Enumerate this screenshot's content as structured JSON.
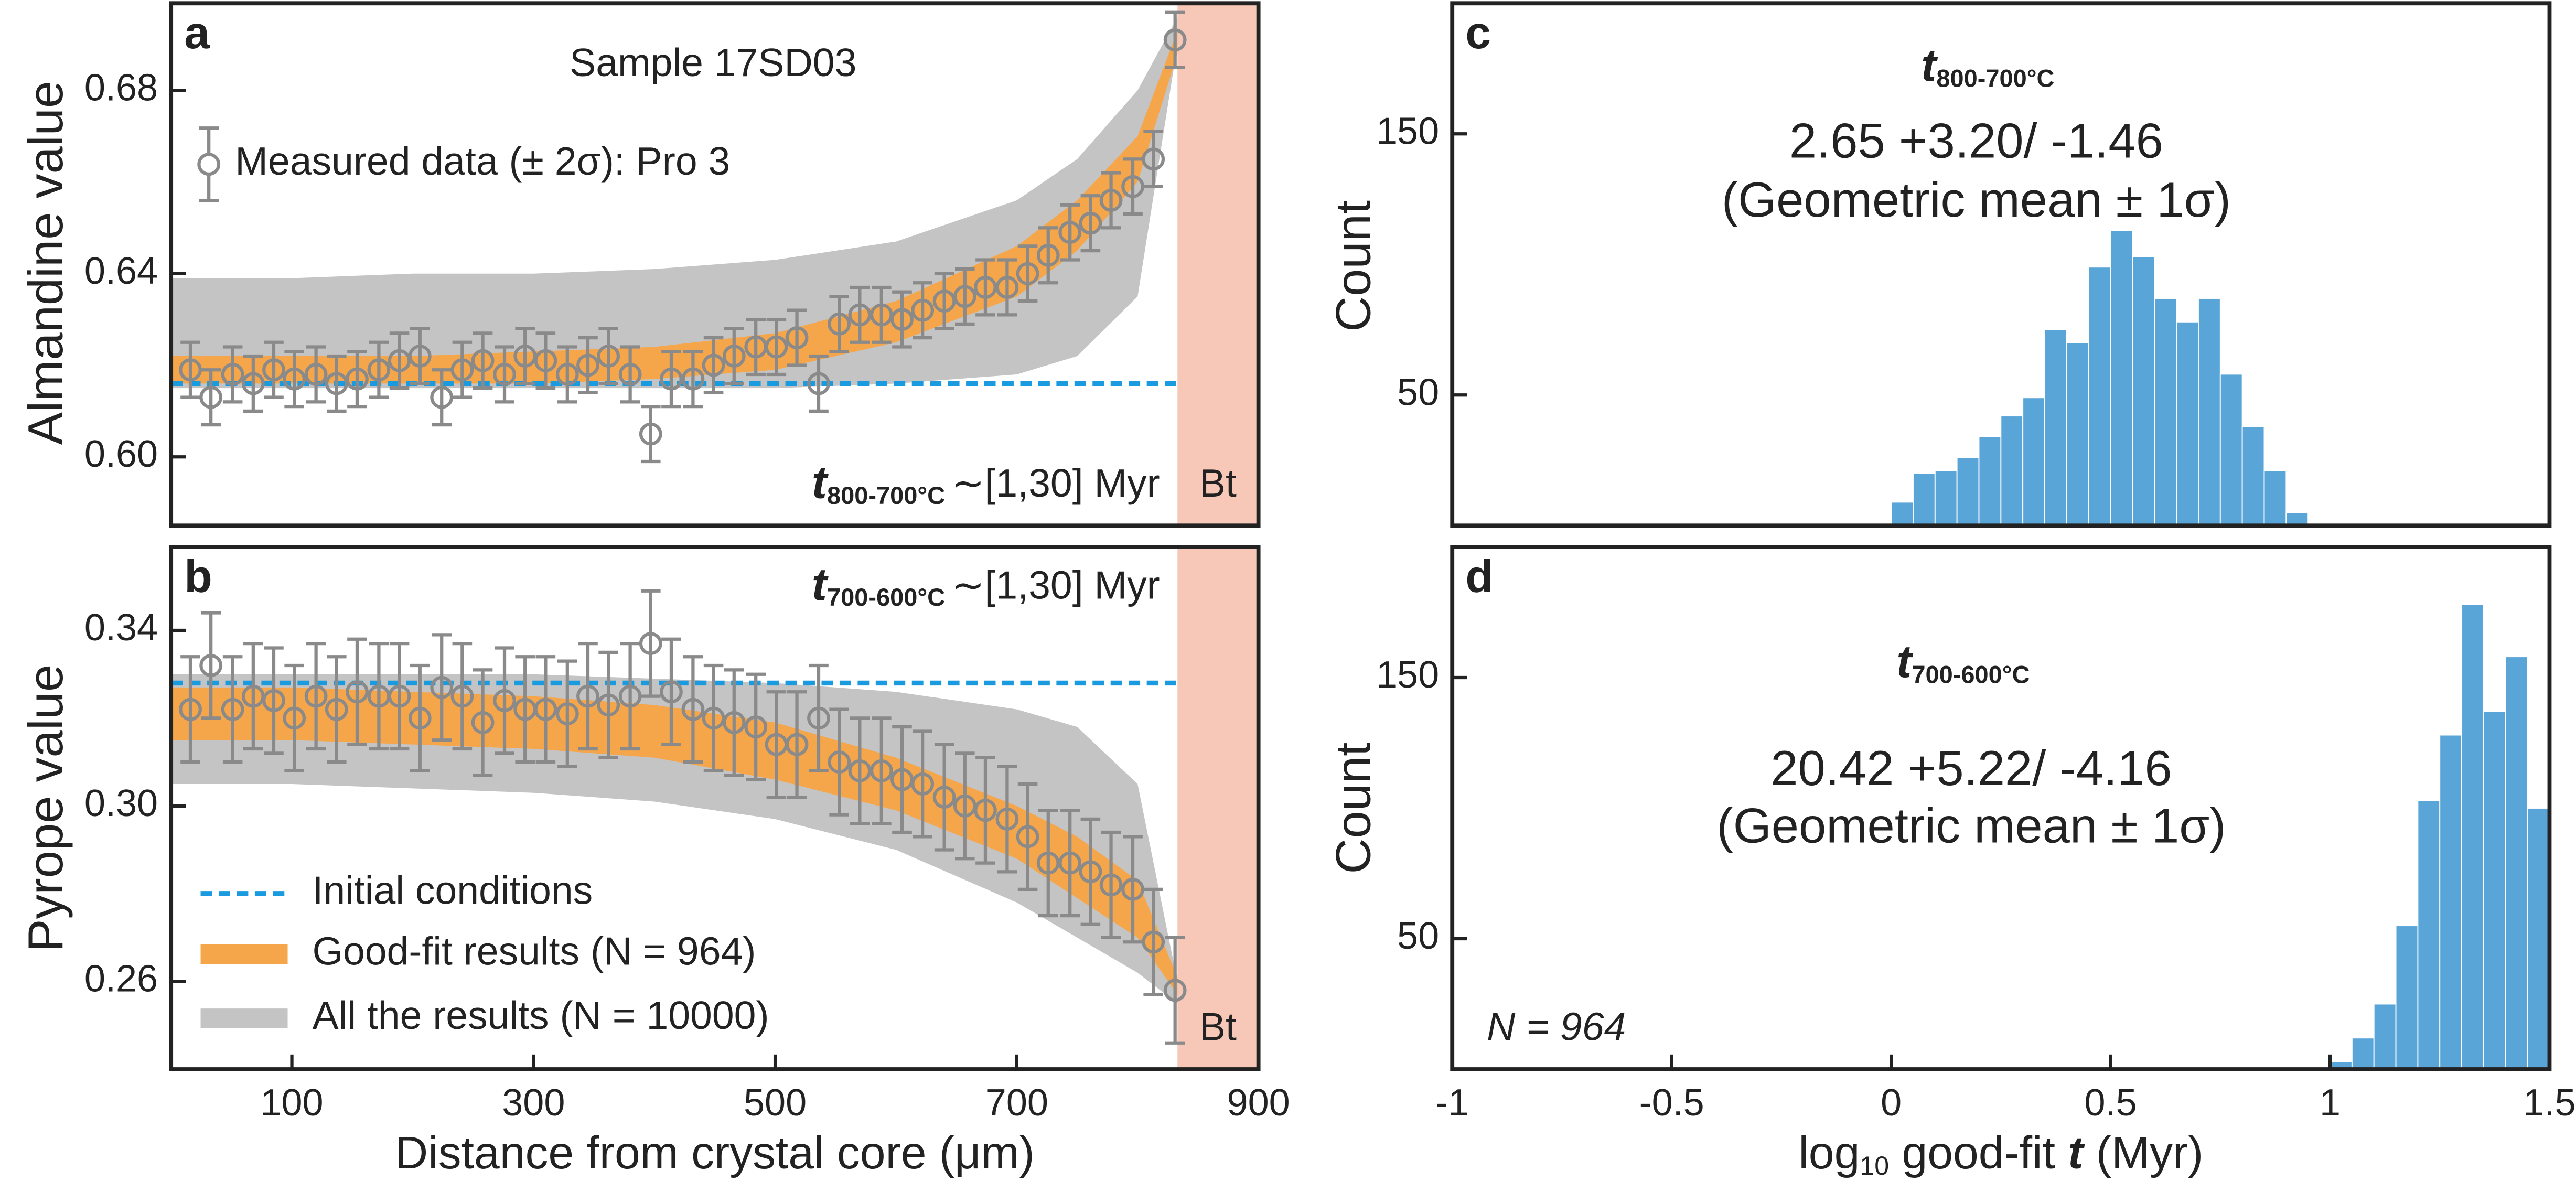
{
  "chart_data": [
    {
      "type": "scatter",
      "label": "a",
      "title": "Sample 17SD03",
      "y_label": "Almandine value",
      "xlim": [
        0,
        900
      ],
      "ylim": [
        0.585,
        0.699
      ],
      "yticks": [
        {
          "value": 0.6,
          "label": "0.60"
        },
        0.64,
        0.68
      ],
      "x": [
        16,
        33,
        51,
        68,
        85,
        102,
        120,
        137,
        154,
        172,
        189,
        206,
        224,
        241,
        258,
        276,
        293,
        310,
        328,
        345,
        362,
        380,
        397,
        414,
        432,
        449,
        466,
        484,
        501,
        518,
        536,
        553,
        570,
        588,
        605,
        622,
        640,
        657,
        674,
        692,
        709,
        726,
        744,
        761,
        778,
        796,
        813,
        831
      ],
      "measured": {
        "name": "Measured data (± 2σ): Pro 3",
        "color": "#8a8a8a",
        "error": 0.006,
        "values": [
          0.619,
          0.613,
          0.618,
          0.616,
          0.619,
          0.617,
          0.618,
          0.616,
          0.617,
          0.619,
          0.621,
          0.622,
          0.613,
          0.619,
          0.621,
          0.618,
          0.622,
          0.621,
          0.618,
          0.62,
          0.622,
          0.618,
          0.605,
          0.617,
          0.617,
          0.62,
          0.622,
          0.624,
          0.624,
          0.626,
          0.616,
          0.629,
          0.631,
          0.631,
          0.63,
          0.632,
          0.634,
          0.635,
          0.637,
          0.637,
          0.64,
          0.644,
          0.649,
          0.651,
          0.656,
          0.659,
          0.665,
          0.691
        ]
      },
      "initial": {
        "value": 0.616,
        "color": "#1a9be0"
      },
      "bands": {
        "x": [
          0,
          100,
          200,
          300,
          400,
          500,
          600,
          700,
          750,
          800,
          833
        ],
        "all": {
          "color": "#c4c4c4",
          "lower": [
            0.615,
            0.615,
            0.615,
            0.615,
            0.615,
            0.615,
            0.616,
            0.618,
            0.622,
            0.635,
            0.69
          ],
          "upper": [
            0.639,
            0.639,
            0.64,
            0.64,
            0.641,
            0.643,
            0.647,
            0.656,
            0.665,
            0.68,
            0.696
          ]
        },
        "good": {
          "color": "#f5a64a",
          "lower": [
            0.616,
            0.616,
            0.616,
            0.616,
            0.617,
            0.619,
            0.625,
            0.635,
            0.645,
            0.66,
            0.688
          ],
          "upper": [
            0.622,
            0.622,
            0.622,
            0.623,
            0.624,
            0.627,
            0.634,
            0.646,
            0.656,
            0.67,
            0.693
          ]
        }
      },
      "region": {
        "label": "Bt",
        "from": 833,
        "color": "#f7c8b8"
      },
      "annotation": {
        "t": "t",
        "sub": "800-700°C",
        "text": "∼[1,30] Myr"
      }
    },
    {
      "type": "scatter",
      "label": "b",
      "y_label": "Pyrope value",
      "x_label": "Distance from crystal core (μm)",
      "xlim": [
        0,
        900
      ],
      "xticks": [
        100,
        300,
        500,
        700,
        900
      ],
      "ylim": [
        0.24,
        0.359
      ],
      "yticks": [
        0.26,
        {
          "value": 0.3,
          "label": "0.30"
        },
        0.34
      ],
      "x": [
        16,
        33,
        51,
        68,
        85,
        102,
        120,
        137,
        154,
        172,
        189,
        206,
        224,
        241,
        258,
        276,
        293,
        310,
        328,
        345,
        362,
        380,
        397,
        414,
        432,
        449,
        466,
        484,
        501,
        518,
        536,
        553,
        570,
        588,
        605,
        622,
        640,
        657,
        674,
        692,
        709,
        726,
        744,
        761,
        778,
        796,
        813,
        831
      ],
      "measured": {
        "color": "#8a8a8a",
        "error": 0.012,
        "values": [
          0.322,
          0.332,
          0.322,
          0.325,
          0.324,
          0.32,
          0.325,
          0.322,
          0.326,
          0.325,
          0.325,
          0.32,
          0.327,
          0.325,
          0.319,
          0.324,
          0.322,
          0.322,
          0.321,
          0.325,
          0.323,
          0.325,
          0.337,
          0.326,
          0.322,
          0.32,
          0.319,
          0.318,
          0.314,
          0.314,
          0.32,
          0.31,
          0.308,
          0.308,
          0.306,
          0.305,
          0.302,
          0.3,
          0.299,
          0.297,
          0.293,
          0.287,
          0.287,
          0.285,
          0.282,
          0.281,
          0.269,
          0.258
        ]
      },
      "initial": {
        "name": "Initial conditions",
        "value": 0.328,
        "color": "#1a9be0"
      },
      "bands": {
        "x": [
          0,
          100,
          200,
          300,
          400,
          500,
          600,
          700,
          750,
          800,
          833
        ],
        "all": {
          "name": "All the results (N = 10000)",
          "color": "#c4c4c4",
          "lower": [
            0.305,
            0.305,
            0.304,
            0.303,
            0.301,
            0.297,
            0.29,
            0.278,
            0.27,
            0.262,
            0.255
          ],
          "upper": [
            0.33,
            0.33,
            0.33,
            0.33,
            0.329,
            0.328,
            0.326,
            0.322,
            0.318,
            0.305,
            0.26
          ]
        },
        "good": {
          "name": "Good-fit results (N = 964)",
          "color": "#f5a64a",
          "lower": [
            0.315,
            0.315,
            0.314,
            0.313,
            0.311,
            0.306,
            0.299,
            0.288,
            0.279,
            0.27,
            0.257
          ],
          "upper": [
            0.327,
            0.327,
            0.326,
            0.325,
            0.323,
            0.319,
            0.311,
            0.3,
            0.293,
            0.283,
            0.261
          ]
        }
      },
      "region": {
        "label": "Bt",
        "from": 833,
        "color": "#f7c8b8"
      },
      "annotation": {
        "t": "t",
        "sub": "700-600°C",
        "text": "∼[1,30] Myr"
      }
    },
    {
      "type": "histogram",
      "label": "c",
      "y_label": "Count",
      "color": "#5aa5d8",
      "xlim": [
        -1,
        1.5
      ],
      "ylim": [
        0,
        200
      ],
      "yticks": [
        50,
        150
      ],
      "bins": [
        0,
        0.05,
        0.1,
        0.15,
        0.2,
        0.25,
        0.3,
        0.35,
        0.4,
        0.45,
        0.5,
        0.55,
        0.6,
        0.65,
        0.7,
        0.75,
        0.8,
        0.85,
        0.9,
        0.95
      ],
      "counts": [
        9,
        20,
        21,
        26,
        34,
        42,
        49,
        75,
        70,
        99,
        113,
        103,
        87,
        78,
        87,
        58,
        38,
        21,
        5
      ],
      "annotation": {
        "t": "t",
        "sub": "800-700°C",
        "value": "2.65 +3.20/ -1.46",
        "note": "(Geometric mean ± 1σ)"
      }
    },
    {
      "type": "histogram",
      "label": "d",
      "y_label": "Count",
      "color": "#5aa5d8",
      "x_label": [
        "log",
        "10",
        " good-fit ",
        "t",
        " (Myr)"
      ],
      "xlim": [
        -1,
        1.5
      ],
      "xticks": [
        -1,
        -0.5,
        0,
        0.5,
        1,
        1.5
      ],
      "ylim": [
        0,
        200
      ],
      "yticks": [
        50,
        150
      ],
      "bins": [
        1.0,
        1.05,
        1.1,
        1.15,
        1.2,
        1.25,
        1.3,
        1.35,
        1.4,
        1.45,
        1.5
      ],
      "counts": [
        3,
        12,
        25,
        55,
        103,
        128,
        178,
        137,
        158,
        100
      ],
      "annotation": {
        "t": "t",
        "sub": "700-600°C",
        "value": "20.42 +5.22/ -4.16",
        "note": "(Geometric mean ± 1σ)"
      },
      "sample_size": "N = 964"
    }
  ]
}
